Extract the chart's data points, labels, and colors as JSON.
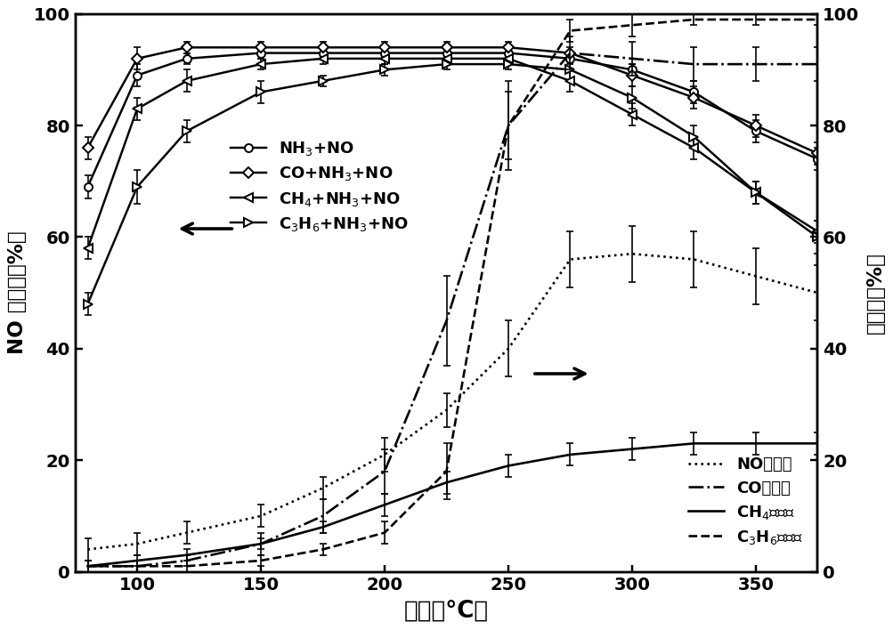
{
  "temp": [
    80,
    100,
    120,
    150,
    175,
    200,
    225,
    250,
    275,
    300,
    325,
    350,
    375
  ],
  "NH3_NO": [
    69,
    89,
    92,
    93,
    93,
    93,
    93,
    93,
    92,
    90,
    86,
    79,
    74
  ],
  "NH3_NO_err": [
    2,
    2,
    1,
    1,
    1,
    1,
    1,
    1,
    1,
    1,
    2,
    2,
    2
  ],
  "CO_NH3_NO": [
    76,
    92,
    94,
    94,
    94,
    94,
    94,
    94,
    93,
    89,
    85,
    80,
    75
  ],
  "CO_NH3_NO_err": [
    2,
    2,
    1,
    1,
    1,
    1,
    1,
    1,
    1,
    2,
    2,
    2,
    2
  ],
  "CH4_NH3_NO": [
    58,
    83,
    88,
    91,
    92,
    92,
    92,
    92,
    88,
    82,
    76,
    68,
    61
  ],
  "CH4_NH3_NO_err": [
    2,
    2,
    2,
    1,
    1,
    1,
    1,
    1,
    2,
    2,
    2,
    2,
    2
  ],
  "C3H6_NH3_NO": [
    48,
    69,
    79,
    86,
    88,
    90,
    91,
    91,
    90,
    85,
    78,
    68,
    60
  ],
  "C3H6_NH3_NO_err": [
    2,
    3,
    2,
    2,
    1,
    1,
    1,
    1,
    2,
    2,
    2,
    2,
    3
  ],
  "NO_ox": [
    4,
    5,
    7,
    10,
    15,
    21,
    29,
    40,
    56,
    57,
    56,
    53,
    50
  ],
  "NO_ox_err": [
    2,
    2,
    2,
    2,
    2,
    3,
    3,
    5,
    5,
    5,
    5,
    5,
    5
  ],
  "CO_ox": [
    1,
    1,
    2,
    5,
    10,
    18,
    45,
    80,
    93,
    92,
    91,
    91,
    91
  ],
  "CO_ox_err": [
    1,
    1,
    1,
    2,
    3,
    4,
    8,
    6,
    3,
    3,
    3,
    3,
    3
  ],
  "CH4_ox": [
    1,
    2,
    3,
    5,
    8,
    12,
    16,
    19,
    21,
    22,
    23,
    23,
    23
  ],
  "CH4_ox_err": [
    1,
    1,
    1,
    1,
    1,
    2,
    2,
    2,
    2,
    2,
    2,
    2,
    2
  ],
  "C3H6_ox": [
    1,
    1,
    1,
    2,
    4,
    7,
    18,
    80,
    97,
    98,
    99,
    99,
    99
  ],
  "C3H6_ox_err": [
    1,
    1,
    1,
    1,
    1,
    2,
    5,
    8,
    2,
    2,
    1,
    1,
    1
  ],
  "xlabel": "温度（°C）",
  "ylabel_left": "NO 转化率（%）",
  "ylabel_right": "氧化率（%）",
  "legend1_labels": [
    "NH$_3$+NO",
    "CO+NH$_3$+NO",
    "CH$_4$+NH$_3$+NO",
    "C$_3$H$_6$+NH$_3$+NO"
  ],
  "legend2_labels": [
    "NO氧化率",
    "CO氧化率",
    "CH$_4$氧化率",
    "C$_3$H$_6$氧化率"
  ],
  "xlim": [
    75,
    375
  ],
  "ylim": [
    0,
    100
  ],
  "xticks": [
    100,
    150,
    200,
    250,
    300,
    350
  ],
  "yticks": [
    0,
    20,
    40,
    60,
    80,
    100
  ]
}
